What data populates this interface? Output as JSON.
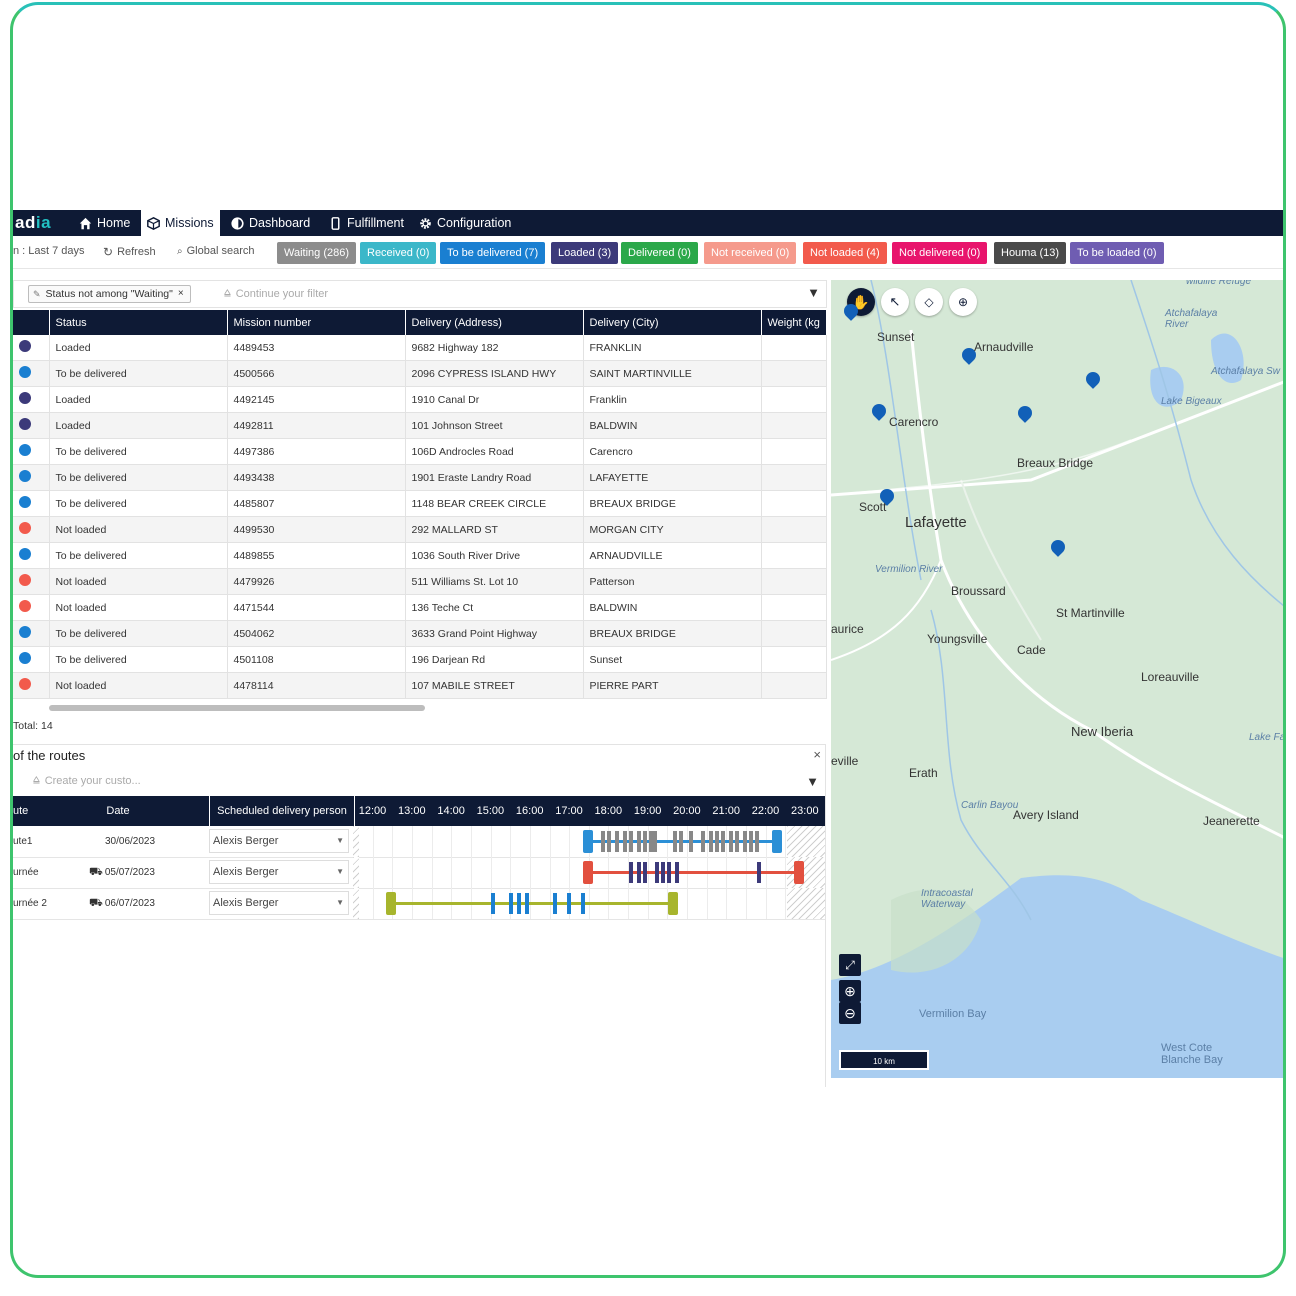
{
  "nav": {
    "logo_prefix": "ad",
    "logo_suffix": "ia",
    "items": [
      {
        "label": "Home",
        "icon": "home-icon"
      },
      {
        "label": "Missions",
        "icon": "box-icon"
      },
      {
        "label": "Dashboard",
        "icon": "dashboard-icon"
      },
      {
        "label": "Fulfillment",
        "icon": "phone-icon"
      },
      {
        "label": "Configuration",
        "icon": "gear-icon"
      }
    ],
    "active": "Missions"
  },
  "toolbar": {
    "period": "n : Last 7 days",
    "refresh": "Refresh",
    "global_search": "Global search",
    "status_pills": [
      {
        "label": "Waiting (286)",
        "color": "#8c8c8c"
      },
      {
        "label": "Received (0)",
        "color": "#3bb7c9"
      },
      {
        "label": "To be delivered (7)",
        "color": "#1a7fd1"
      },
      {
        "label": "Loaded (3)",
        "color": "#3c3a7a"
      },
      {
        "label": "Delivered (0)",
        "color": "#2ba84a"
      },
      {
        "label": "Not received (0)",
        "color": "#f59a8c"
      },
      {
        "label": "Not loaded (4)",
        "color": "#f25a4c"
      },
      {
        "label": "Not delivered (0)",
        "color": "#e8146c"
      },
      {
        "label": "Houma (13)",
        "color": "#4a4a4a"
      },
      {
        "label": "To be loaded (0)",
        "color": "#6f5db2"
      }
    ]
  },
  "filter": {
    "chip": "Status not among \"Waiting\"",
    "placeholder": "Continue your filter"
  },
  "grid": {
    "columns": [
      "Status",
      "Mission number",
      "Delivery (Address)",
      "Delivery (City)",
      "Weight (kg"
    ],
    "rows": [
      {
        "status": "Loaded",
        "color": "#3c3a7a",
        "mission": "4489453",
        "address": "9682 Highway 182",
        "city": "FRANKLIN"
      },
      {
        "status": "To be delivered",
        "color": "#1a7fd1",
        "mission": "4500566",
        "address": "2096 CYPRESS ISLAND HWY",
        "city": "SAINT MARTINVILLE"
      },
      {
        "status": "Loaded",
        "color": "#3c3a7a",
        "mission": "4492145",
        "address": "1910 Canal Dr",
        "city": "Franklin"
      },
      {
        "status": "Loaded",
        "color": "#3c3a7a",
        "mission": "4492811",
        "address": "101 Johnson Street",
        "city": "BALDWIN"
      },
      {
        "status": "To be delivered",
        "color": "#1a7fd1",
        "mission": "4497386",
        "address": "106D Androcles Road",
        "city": "Carencro"
      },
      {
        "status": "To be delivered",
        "color": "#1a7fd1",
        "mission": "4493438",
        "address": "1901 Eraste Landry Road",
        "city": "LAFAYETTE"
      },
      {
        "status": "To be delivered",
        "color": "#1a7fd1",
        "mission": "4485807",
        "address": "1148 BEAR CREEK CIRCLE",
        "city": "BREAUX BRIDGE"
      },
      {
        "status": "Not loaded",
        "color": "#f25a4c",
        "mission": "4499530",
        "address": "292 MALLARD ST",
        "city": "MORGAN CITY"
      },
      {
        "status": "To be delivered",
        "color": "#1a7fd1",
        "mission": "4489855",
        "address": "1036 South River Drive",
        "city": "ARNAUDVILLE"
      },
      {
        "status": "Not loaded",
        "color": "#f25a4c",
        "mission": "4479926",
        "address": "511 Williams St. Lot 10",
        "city": "Patterson"
      },
      {
        "status": "Not loaded",
        "color": "#f25a4c",
        "mission": "4471544",
        "address": "136 Teche Ct",
        "city": "BALDWIN"
      },
      {
        "status": "To be delivered",
        "color": "#1a7fd1",
        "mission": "4504062",
        "address": "3633 Grand Point Highway",
        "city": "BREAUX BRIDGE"
      },
      {
        "status": "To be delivered",
        "color": "#1a7fd1",
        "mission": "4501108",
        "address": "196 Darjean Rd",
        "city": "Sunset"
      },
      {
        "status": "Not loaded",
        "color": "#f25a4c",
        "mission": "4478114",
        "address": "107 MABILE STREET",
        "city": "PIERRE PART"
      }
    ],
    "total": "Total: 14"
  },
  "routes": {
    "title": "of the routes",
    "placeholder": "Create your custo...",
    "columns": [
      "ute",
      "Date",
      "Scheduled delivery person"
    ],
    "hours": [
      "12:00",
      "13:00",
      "14:00",
      "15:00",
      "16:00",
      "17:00",
      "18:00",
      "19:00",
      "20:00",
      "21:00",
      "22:00",
      "23:00"
    ],
    "rows": [
      {
        "route": "ute1",
        "date": "30/06/2023",
        "truck": false,
        "person": "Alexis Berger",
        "color": "#2b8fd6"
      },
      {
        "route": "urnée",
        "date": "05/07/2023",
        "truck": true,
        "person": "Alexis Berger",
        "color": "#e2503f"
      },
      {
        "route": "urnée 2",
        "date": "06/07/2023",
        "truck": true,
        "person": "Alexis Berger",
        "color": "#a7b52d"
      }
    ]
  },
  "map": {
    "labels": [
      "Sunset",
      "Arnaudville",
      "Carencro",
      "Breaux Bridge",
      "Scott",
      "Lafayette",
      "Broussard",
      "St Martinville",
      "Youngsville",
      "Cade",
      "Loreauville",
      "New Iberia",
      "Erath",
      "Avery Island",
      "Jeanerette",
      "aurice",
      "eville"
    ],
    "water_labels": [
      "Atchafalaya River",
      "Lake Bigeaux",
      "Vermilion River",
      "Carlin Bayou",
      "Intracoastal Waterway",
      "Vermilion Bay",
      "West Cote Blanche Bay",
      "Lake Fa Poin",
      "Atchafalaya Sw",
      "wildlife Refuge"
    ],
    "scale": "10 km"
  }
}
